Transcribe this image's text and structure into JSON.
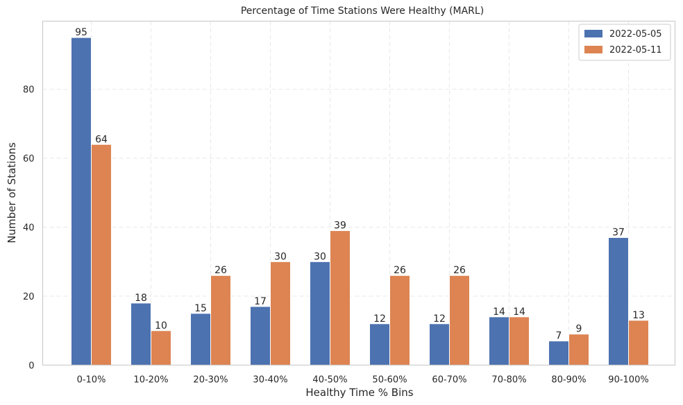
{
  "chart_data": {
    "type": "bar",
    "title": "Percentage of Time Stations Were Healthy (MARL)",
    "xlabel": "Healthy Time % Bins",
    "ylabel": "Number of Stations",
    "categories": [
      "0-10%",
      "10-20%",
      "20-30%",
      "30-40%",
      "40-50%",
      "50-60%",
      "60-70%",
      "70-80%",
      "80-90%",
      "90-100%"
    ],
    "series": [
      {
        "name": "2022-05-05",
        "color": "#4c72b0",
        "values": [
          95,
          18,
          15,
          17,
          30,
          12,
          12,
          14,
          7,
          37
        ]
      },
      {
        "name": "2022-05-11",
        "color": "#dd8452",
        "values": [
          64,
          10,
          26,
          30,
          39,
          26,
          26,
          14,
          9,
          13
        ]
      }
    ],
    "ylim": [
      0,
      99.75
    ],
    "yticks": [
      0,
      20,
      40,
      60,
      80
    ],
    "grid": true,
    "legend_position": "top-right",
    "data_labels": true
  }
}
